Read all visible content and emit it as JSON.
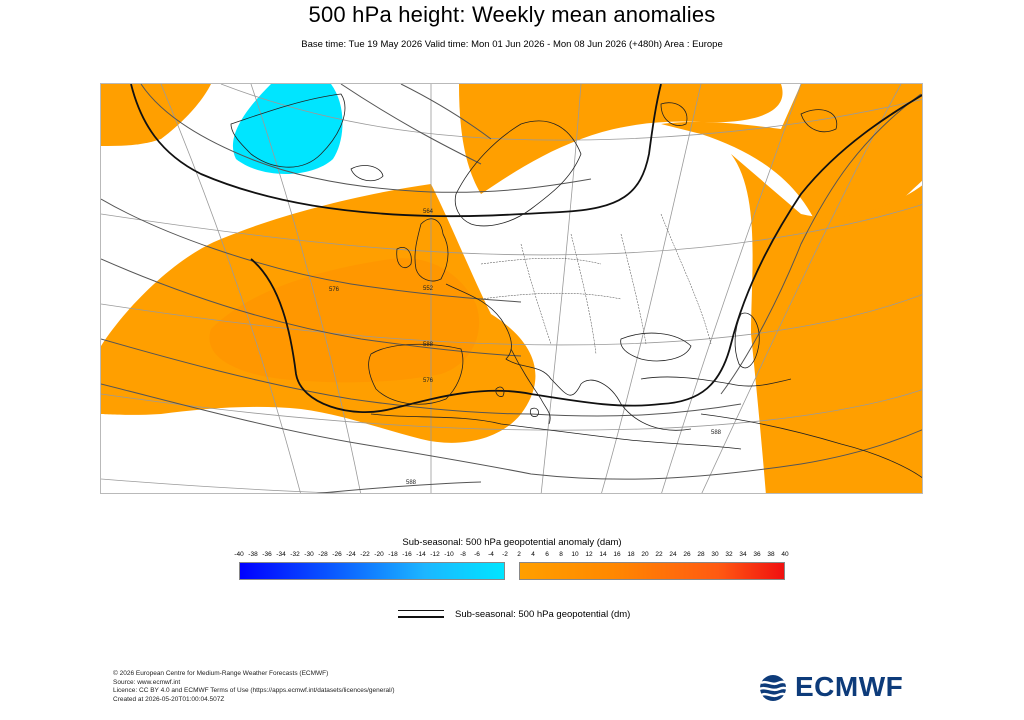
{
  "header": {
    "title": "500 hPa height: Weekly mean anomalies",
    "subtitle": "Base time: Tue 19 May 2026 Valid time: Mon 01 Jun 2026 - Mon 08 Jun 2026 (+480h) Area : Europe"
  },
  "map": {
    "contour_labels": [
      "564",
      "576",
      "552",
      "576",
      "588",
      "588",
      "588"
    ],
    "colors": {
      "positive_anomaly": "#ff9f00",
      "positive_anomaly_core": "#ff8f00",
      "negative_anomaly": "#00e5ff",
      "coastline": "#222222",
      "graticule": "#9a9a9a"
    }
  },
  "colorbar": {
    "title": "Sub-seasonal: 500 hPa geopotential anomaly (dam)",
    "negative_ticks": [
      "-40",
      "-38",
      "-36",
      "-34",
      "-32",
      "-30",
      "-28",
      "-26",
      "-24",
      "-22",
      "-20",
      "-18",
      "-16",
      "-14",
      "-12",
      "-10",
      "-8",
      "-6",
      "-4",
      "-2"
    ],
    "positive_ticks": [
      "2",
      "4",
      "6",
      "8",
      "10",
      "12",
      "14",
      "16",
      "18",
      "20",
      "22",
      "24",
      "26",
      "28",
      "30",
      "32",
      "34",
      "36",
      "38",
      "40"
    ],
    "negative_colors": [
      "#0000ff",
      "#00e5ff"
    ],
    "positive_colors": [
      "#ff9f00",
      "#f01010"
    ]
  },
  "legend": {
    "contour_label": "Sub-seasonal: 500 hPa geopotential (dm)"
  },
  "footer": {
    "line1": "© 2026 European Centre for Medium-Range Weather Forecasts (ECMWF)",
    "line2": "Source: www.ecmwf.int",
    "line3": "Licence: CC BY 4.0 and ECMWF Terms of Use (https://apps.ecmwf.int/datasets/licences/general/)",
    "line4": "Created at 2026-05-20T01:00:04.507Z"
  },
  "logo": {
    "text": "ECMWF",
    "color": "#0d3b7a"
  }
}
